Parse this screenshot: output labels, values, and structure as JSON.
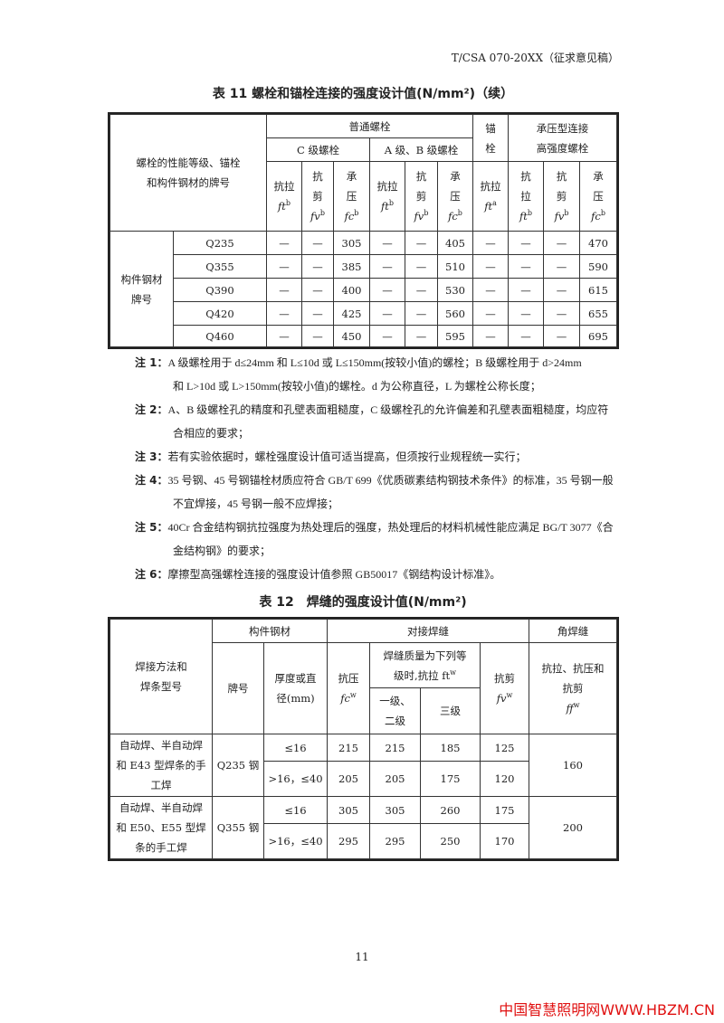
{
  "header": {
    "doc_id": "T/CSA 070-20XX（征求意见稿）"
  },
  "table11": {
    "caption": "表 11 螺栓和锚栓连接的强度设计值(N/mm²)（续）",
    "corner": [
      "螺栓的性能等级、锚栓",
      "和构件钢材的牌号"
    ],
    "ordinary": "普通螺栓",
    "c_grade": "C 级螺栓",
    "ab_grade": "A 级、B 级螺栓",
    "anchor": [
      "锚",
      "栓"
    ],
    "bearing": [
      "承压型连接",
      "高强度螺栓"
    ],
    "sub": {
      "tension": "抗拉",
      "shear": [
        "抗",
        "剪"
      ],
      "compression": [
        "承",
        "压"
      ],
      "tension_split": [
        "抗",
        "拉"
      ]
    },
    "sym": {
      "ft_b": "ft",
      "fv_b": "fv",
      "fc_b": "fc",
      "ft_a": "ft",
      "sup_b": "b",
      "sup_a": "a"
    },
    "group_label": [
      "构件钢材",
      "牌号"
    ],
    "rows": [
      {
        "grade": "Q235",
        "values": [
          "—",
          "—",
          "305",
          "—",
          "—",
          "405",
          "—",
          "—",
          "—",
          "470"
        ]
      },
      {
        "grade": "Q355",
        "values": [
          "—",
          "—",
          "385",
          "—",
          "—",
          "510",
          "—",
          "—",
          "—",
          "590"
        ]
      },
      {
        "grade": "Q390",
        "values": [
          "—",
          "—",
          "400",
          "—",
          "—",
          "530",
          "—",
          "—",
          "—",
          "615"
        ]
      },
      {
        "grade": "Q420",
        "values": [
          "—",
          "—",
          "425",
          "—",
          "—",
          "560",
          "—",
          "—",
          "—",
          "655"
        ]
      },
      {
        "grade": "Q460",
        "values": [
          "—",
          "—",
          "450",
          "—",
          "—",
          "595",
          "—",
          "—",
          "—",
          "695"
        ]
      }
    ]
  },
  "notes": [
    {
      "label": "注 1：",
      "lines": [
        "A 级螺栓用于 d≤24mm 和 L≤10d 或 L≤150mm(按较小值)的螺栓；B 级螺栓用于 d>24mm",
        "和 L>10d 或 L>150mm(按较小值)的螺栓。d 为公称直径，L 为螺栓公称长度；"
      ]
    },
    {
      "label": "注 2：",
      "lines": [
        "A、B 级螺栓孔的精度和孔壁表面粗糙度，C 级螺栓孔的允许偏差和孔壁表面粗糙度，均应符",
        "合相应的要求；"
      ]
    },
    {
      "label": "注 3：",
      "lines": [
        "若有实验依据时，螺栓强度设计值可适当提高，但须按行业规程统一实行；"
      ]
    },
    {
      "label": "注 4：",
      "lines": [
        "35 号钢、45 号钢锚栓材质应符合 GB/T 699《优质碳素结构钢技术条件》的标准，35 号钢一般",
        "不宜焊接，45 号钢一般不应焊接；"
      ]
    },
    {
      "label": "注 5：",
      "lines": [
        "40Cr 合金结构钢抗拉强度为热处理后的强度，热处理后的材料机械性能应满足 BG/T 3077《合",
        "金结构钢》的要求；"
      ]
    },
    {
      "label": "注 6：",
      "lines": [
        "摩擦型高强螺栓连接的强度设计值参照 GB50017《钢结构设计标准》。"
      ]
    }
  ],
  "table12": {
    "caption": "表 12　焊缝的强度设计值(N/mm²)",
    "method": [
      "焊接方法和",
      "焊条型号"
    ],
    "member_steel": "构件钢材",
    "grade": "牌号",
    "thickness": [
      "厚度或直",
      "径(mm)"
    ],
    "butt": "对接焊缝",
    "compression": [
      "抗压",
      "fc",
      "w"
    ],
    "quality": [
      "焊缝质量为下列等",
      "级时,抗拉 ft",
      "w"
    ],
    "level12": [
      "一级、",
      "二级"
    ],
    "level3": "三级",
    "shear": [
      "抗剪",
      "fv",
      "w"
    ],
    "fillet": "角焊缝",
    "fillet_sub": [
      "抗拉、抗压和",
      "抗剪",
      "ff",
      "w"
    ],
    "groups": [
      {
        "method": [
          "自动焊、半自动焊",
          "和 E43 型焊条的手",
          "工焊"
        ],
        "grade": "Q235 钢",
        "fillet": "160",
        "rows": [
          [
            "≤16",
            "215",
            "215",
            "185",
            "125"
          ],
          [
            ">16，≤40",
            "205",
            "205",
            "175",
            "120"
          ]
        ]
      },
      {
        "method": [
          "自动焊、半自动焊",
          "和 E50、E55 型焊",
          "条的手工焊"
        ],
        "grade": "Q355 钢",
        "fillet": "200",
        "rows": [
          [
            "≤16",
            "305",
            "305",
            "260",
            "175"
          ],
          [
            ">16，≤40",
            "295",
            "295",
            "250",
            "170"
          ]
        ]
      }
    ]
  },
  "watermark": "T/CSA 070-20XX（征求意见稿）",
  "page_number": "11",
  "footer": {
    "site": "中国智慧照明网WWW.HBZM.CN",
    "color": "#e01010"
  }
}
